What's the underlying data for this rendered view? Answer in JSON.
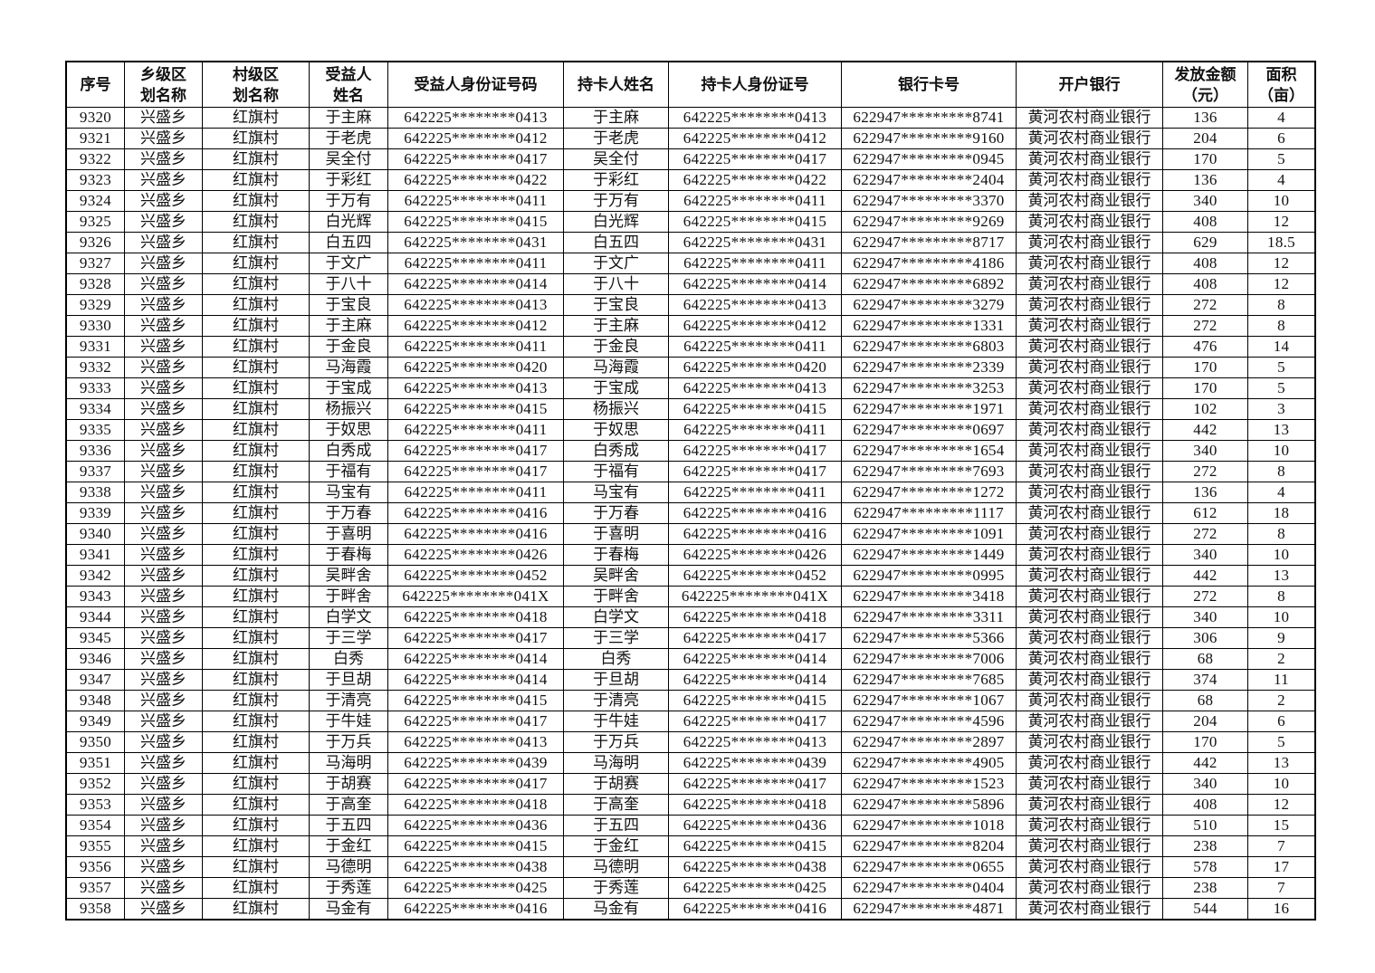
{
  "table": {
    "columns": [
      {
        "key": "index",
        "label": [
          "序号"
        ]
      },
      {
        "key": "township",
        "label": [
          "乡级区",
          "划名称"
        ]
      },
      {
        "key": "village",
        "label": [
          "村级区",
          "划名称"
        ]
      },
      {
        "key": "beneficiary_name",
        "label": [
          "受益人",
          "姓名"
        ]
      },
      {
        "key": "beneficiary_id",
        "label": [
          "受益人身份证号码"
        ]
      },
      {
        "key": "cardholder_name",
        "label": [
          "持卡人姓名"
        ]
      },
      {
        "key": "cardholder_id",
        "label": [
          "持卡人身份证号"
        ]
      },
      {
        "key": "bank_card",
        "label": [
          "银行卡号"
        ]
      },
      {
        "key": "bank_name",
        "label": [
          "开户银行"
        ]
      },
      {
        "key": "amount",
        "label": [
          "发放金额",
          "（元）"
        ]
      },
      {
        "key": "area",
        "label": [
          "面积",
          "（亩）"
        ]
      }
    ],
    "rows": [
      {
        "index": "9320",
        "township": "兴盛乡",
        "village": "红旗村",
        "beneficiary_name": "于主麻",
        "beneficiary_id": "642225********0413",
        "cardholder_name": "于主麻",
        "cardholder_id": "642225********0413",
        "bank_card": "622947*********8741",
        "bank_name": "黄河农村商业银行",
        "amount": "136",
        "area": "4"
      },
      {
        "index": "9321",
        "township": "兴盛乡",
        "village": "红旗村",
        "beneficiary_name": "于老虎",
        "beneficiary_id": "642225********0412",
        "cardholder_name": "于老虎",
        "cardholder_id": "642225********0412",
        "bank_card": "622947*********9160",
        "bank_name": "黄河农村商业银行",
        "amount": "204",
        "area": "6"
      },
      {
        "index": "9322",
        "township": "兴盛乡",
        "village": "红旗村",
        "beneficiary_name": "吴全付",
        "beneficiary_id": "642225********0417",
        "cardholder_name": "吴全付",
        "cardholder_id": "642225********0417",
        "bank_card": "622947*********0945",
        "bank_name": "黄河农村商业银行",
        "amount": "170",
        "area": "5"
      },
      {
        "index": "9323",
        "township": "兴盛乡",
        "village": "红旗村",
        "beneficiary_name": "于彩红",
        "beneficiary_id": "642225********0422",
        "cardholder_name": "于彩红",
        "cardholder_id": "642225********0422",
        "bank_card": "622947*********2404",
        "bank_name": "黄河农村商业银行",
        "amount": "136",
        "area": "4"
      },
      {
        "index": "9324",
        "township": "兴盛乡",
        "village": "红旗村",
        "beneficiary_name": "于万有",
        "beneficiary_id": "642225********0411",
        "cardholder_name": "于万有",
        "cardholder_id": "642225********0411",
        "bank_card": "622947*********3370",
        "bank_name": "黄河农村商业银行",
        "amount": "340",
        "area": "10"
      },
      {
        "index": "9325",
        "township": "兴盛乡",
        "village": "红旗村",
        "beneficiary_name": "白光辉",
        "beneficiary_id": "642225********0415",
        "cardholder_name": "白光辉",
        "cardholder_id": "642225********0415",
        "bank_card": "622947*********9269",
        "bank_name": "黄河农村商业银行",
        "amount": "408",
        "area": "12"
      },
      {
        "index": "9326",
        "township": "兴盛乡",
        "village": "红旗村",
        "beneficiary_name": "白五四",
        "beneficiary_id": "642225********0431",
        "cardholder_name": "白五四",
        "cardholder_id": "642225********0431",
        "bank_card": "622947*********8717",
        "bank_name": "黄河农村商业银行",
        "amount": "629",
        "area": "18.5"
      },
      {
        "index": "9327",
        "township": "兴盛乡",
        "village": "红旗村",
        "beneficiary_name": "于文广",
        "beneficiary_id": "642225********0411",
        "cardholder_name": "于文广",
        "cardholder_id": "642225********0411",
        "bank_card": "622947*********4186",
        "bank_name": "黄河农村商业银行",
        "amount": "408",
        "area": "12"
      },
      {
        "index": "9328",
        "township": "兴盛乡",
        "village": "红旗村",
        "beneficiary_name": "于八十",
        "beneficiary_id": "642225********0414",
        "cardholder_name": "于八十",
        "cardholder_id": "642225********0414",
        "bank_card": "622947*********6892",
        "bank_name": "黄河农村商业银行",
        "amount": "408",
        "area": "12"
      },
      {
        "index": "9329",
        "township": "兴盛乡",
        "village": "红旗村",
        "beneficiary_name": "于宝良",
        "beneficiary_id": "642225********0413",
        "cardholder_name": "于宝良",
        "cardholder_id": "642225********0413",
        "bank_card": "622947*********3279",
        "bank_name": "黄河农村商业银行",
        "amount": "272",
        "area": "8"
      },
      {
        "index": "9330",
        "township": "兴盛乡",
        "village": "红旗村",
        "beneficiary_name": "于主麻",
        "beneficiary_id": "642225********0412",
        "cardholder_name": "于主麻",
        "cardholder_id": "642225********0412",
        "bank_card": "622947*********1331",
        "bank_name": "黄河农村商业银行",
        "amount": "272",
        "area": "8"
      },
      {
        "index": "9331",
        "township": "兴盛乡",
        "village": "红旗村",
        "beneficiary_name": "于金良",
        "beneficiary_id": "642225********0411",
        "cardholder_name": "于金良",
        "cardholder_id": "642225********0411",
        "bank_card": "622947*********6803",
        "bank_name": "黄河农村商业银行",
        "amount": "476",
        "area": "14"
      },
      {
        "index": "9332",
        "township": "兴盛乡",
        "village": "红旗村",
        "beneficiary_name": "马海霞",
        "beneficiary_id": "642225********0420",
        "cardholder_name": "马海霞",
        "cardholder_id": "642225********0420",
        "bank_card": "622947*********2339",
        "bank_name": "黄河农村商业银行",
        "amount": "170",
        "area": "5"
      },
      {
        "index": "9333",
        "township": "兴盛乡",
        "village": "红旗村",
        "beneficiary_name": "于宝成",
        "beneficiary_id": "642225********0413",
        "cardholder_name": "于宝成",
        "cardholder_id": "642225********0413",
        "bank_card": "622947*********3253",
        "bank_name": "黄河农村商业银行",
        "amount": "170",
        "area": "5"
      },
      {
        "index": "9334",
        "township": "兴盛乡",
        "village": "红旗村",
        "beneficiary_name": "杨振兴",
        "beneficiary_id": "642225********0415",
        "cardholder_name": "杨振兴",
        "cardholder_id": "642225********0415",
        "bank_card": "622947*********1971",
        "bank_name": "黄河农村商业银行",
        "amount": "102",
        "area": "3"
      },
      {
        "index": "9335",
        "township": "兴盛乡",
        "village": "红旗村",
        "beneficiary_name": "于奴思",
        "beneficiary_id": "642225********0411",
        "cardholder_name": "于奴思",
        "cardholder_id": "642225********0411",
        "bank_card": "622947*********0697",
        "bank_name": "黄河农村商业银行",
        "amount": "442",
        "area": "13"
      },
      {
        "index": "9336",
        "township": "兴盛乡",
        "village": "红旗村",
        "beneficiary_name": "白秀成",
        "beneficiary_id": "642225********0417",
        "cardholder_name": "白秀成",
        "cardholder_id": "642225********0417",
        "bank_card": "622947*********1654",
        "bank_name": "黄河农村商业银行",
        "amount": "340",
        "area": "10"
      },
      {
        "index": "9337",
        "township": "兴盛乡",
        "village": "红旗村",
        "beneficiary_name": "于福有",
        "beneficiary_id": "642225********0417",
        "cardholder_name": "于福有",
        "cardholder_id": "642225********0417",
        "bank_card": "622947*********7693",
        "bank_name": "黄河农村商业银行",
        "amount": "272",
        "area": "8"
      },
      {
        "index": "9338",
        "township": "兴盛乡",
        "village": "红旗村",
        "beneficiary_name": "马宝有",
        "beneficiary_id": "642225********0411",
        "cardholder_name": "马宝有",
        "cardholder_id": "642225********0411",
        "bank_card": "622947*********1272",
        "bank_name": "黄河农村商业银行",
        "amount": "136",
        "area": "4"
      },
      {
        "index": "9339",
        "township": "兴盛乡",
        "village": "红旗村",
        "beneficiary_name": "于万春",
        "beneficiary_id": "642225********0416",
        "cardholder_name": "于万春",
        "cardholder_id": "642225********0416",
        "bank_card": "622947*********1117",
        "bank_name": "黄河农村商业银行",
        "amount": "612",
        "area": "18"
      },
      {
        "index": "9340",
        "township": "兴盛乡",
        "village": "红旗村",
        "beneficiary_name": "于喜明",
        "beneficiary_id": "642225********0416",
        "cardholder_name": "于喜明",
        "cardholder_id": "642225********0416",
        "bank_card": "622947*********1091",
        "bank_name": "黄河农村商业银行",
        "amount": "272",
        "area": "8"
      },
      {
        "index": "9341",
        "township": "兴盛乡",
        "village": "红旗村",
        "beneficiary_name": "于春梅",
        "beneficiary_id": "642225********0426",
        "cardholder_name": "于春梅",
        "cardholder_id": "642225********0426",
        "bank_card": "622947*********1449",
        "bank_name": "黄河农村商业银行",
        "amount": "340",
        "area": "10"
      },
      {
        "index": "9342",
        "township": "兴盛乡",
        "village": "红旗村",
        "beneficiary_name": "吴畔舍",
        "beneficiary_id": "642225********0452",
        "cardholder_name": "吴畔舍",
        "cardholder_id": "642225********0452",
        "bank_card": "622947*********0995",
        "bank_name": "黄河农村商业银行",
        "amount": "442",
        "area": "13"
      },
      {
        "index": "9343",
        "township": "兴盛乡",
        "village": "红旗村",
        "beneficiary_name": "于畔舍",
        "beneficiary_id": "642225********041X",
        "cardholder_name": "于畔舍",
        "cardholder_id": "642225********041X",
        "bank_card": "622947*********3418",
        "bank_name": "黄河农村商业银行",
        "amount": "272",
        "area": "8"
      },
      {
        "index": "9344",
        "township": "兴盛乡",
        "village": "红旗村",
        "beneficiary_name": "白学文",
        "beneficiary_id": "642225********0418",
        "cardholder_name": "白学文",
        "cardholder_id": "642225********0418",
        "bank_card": "622947*********3311",
        "bank_name": "黄河农村商业银行",
        "amount": "340",
        "area": "10"
      },
      {
        "index": "9345",
        "township": "兴盛乡",
        "village": "红旗村",
        "beneficiary_name": "于三学",
        "beneficiary_id": "642225********0417",
        "cardholder_name": "于三学",
        "cardholder_id": "642225********0417",
        "bank_card": "622947*********5366",
        "bank_name": "黄河农村商业银行",
        "amount": "306",
        "area": "9"
      },
      {
        "index": "9346",
        "township": "兴盛乡",
        "village": "红旗村",
        "beneficiary_name": "白秀",
        "beneficiary_id": "642225********0414",
        "cardholder_name": "白秀",
        "cardholder_id": "642225********0414",
        "bank_card": "622947*********7006",
        "bank_name": "黄河农村商业银行",
        "amount": "68",
        "area": "2"
      },
      {
        "index": "9347",
        "township": "兴盛乡",
        "village": "红旗村",
        "beneficiary_name": "于旦胡",
        "beneficiary_id": "642225********0414",
        "cardholder_name": "于旦胡",
        "cardholder_id": "642225********0414",
        "bank_card": "622947*********7685",
        "bank_name": "黄河农村商业银行",
        "amount": "374",
        "area": "11"
      },
      {
        "index": "9348",
        "township": "兴盛乡",
        "village": "红旗村",
        "beneficiary_name": "于清亮",
        "beneficiary_id": "642225********0415",
        "cardholder_name": "于清亮",
        "cardholder_id": "642225********0415",
        "bank_card": "622947*********1067",
        "bank_name": "黄河农村商业银行",
        "amount": "68",
        "area": "2"
      },
      {
        "index": "9349",
        "township": "兴盛乡",
        "village": "红旗村",
        "beneficiary_name": "于牛娃",
        "beneficiary_id": "642225********0417",
        "cardholder_name": "于牛娃",
        "cardholder_id": "642225********0417",
        "bank_card": "622947*********4596",
        "bank_name": "黄河农村商业银行",
        "amount": "204",
        "area": "6"
      },
      {
        "index": "9350",
        "township": "兴盛乡",
        "village": "红旗村",
        "beneficiary_name": "于万兵",
        "beneficiary_id": "642225********0413",
        "cardholder_name": "于万兵",
        "cardholder_id": "642225********0413",
        "bank_card": "622947*********2897",
        "bank_name": "黄河农村商业银行",
        "amount": "170",
        "area": "5"
      },
      {
        "index": "9351",
        "township": "兴盛乡",
        "village": "红旗村",
        "beneficiary_name": "马海明",
        "beneficiary_id": "642225********0439",
        "cardholder_name": "马海明",
        "cardholder_id": "642225********0439",
        "bank_card": "622947*********4905",
        "bank_name": "黄河农村商业银行",
        "amount": "442",
        "area": "13"
      },
      {
        "index": "9352",
        "township": "兴盛乡",
        "village": "红旗村",
        "beneficiary_name": "于胡赛",
        "beneficiary_id": "642225********0417",
        "cardholder_name": "于胡赛",
        "cardholder_id": "642225********0417",
        "bank_card": "622947*********1523",
        "bank_name": "黄河农村商业银行",
        "amount": "340",
        "area": "10"
      },
      {
        "index": "9353",
        "township": "兴盛乡",
        "village": "红旗村",
        "beneficiary_name": "于高奎",
        "beneficiary_id": "642225********0418",
        "cardholder_name": "于高奎",
        "cardholder_id": "642225********0418",
        "bank_card": "622947*********5896",
        "bank_name": "黄河农村商业银行",
        "amount": "408",
        "area": "12"
      },
      {
        "index": "9354",
        "township": "兴盛乡",
        "village": "红旗村",
        "beneficiary_name": "于五四",
        "beneficiary_id": "642225********0436",
        "cardholder_name": "于五四",
        "cardholder_id": "642225********0436",
        "bank_card": "622947*********1018",
        "bank_name": "黄河农村商业银行",
        "amount": "510",
        "area": "15"
      },
      {
        "index": "9355",
        "township": "兴盛乡",
        "village": "红旗村",
        "beneficiary_name": "于金红",
        "beneficiary_id": "642225********0415",
        "cardholder_name": "于金红",
        "cardholder_id": "642225********0415",
        "bank_card": "622947*********8204",
        "bank_name": "黄河农村商业银行",
        "amount": "238",
        "area": "7"
      },
      {
        "index": "9356",
        "township": "兴盛乡",
        "village": "红旗村",
        "beneficiary_name": "马德明",
        "beneficiary_id": "642225********0438",
        "cardholder_name": "马德明",
        "cardholder_id": "642225********0438",
        "bank_card": "622947*********0655",
        "bank_name": "黄河农村商业银行",
        "amount": "578",
        "area": "17"
      },
      {
        "index": "9357",
        "township": "兴盛乡",
        "village": "红旗村",
        "beneficiary_name": "于秀莲",
        "beneficiary_id": "642225********0425",
        "cardholder_name": "于秀莲",
        "cardholder_id": "642225********0425",
        "bank_card": "622947*********0404",
        "bank_name": "黄河农村商业银行",
        "amount": "238",
        "area": "7"
      },
      {
        "index": "9358",
        "township": "兴盛乡",
        "village": "红旗村",
        "beneficiary_name": "马金有",
        "beneficiary_id": "642225********0416",
        "cardholder_name": "马金有",
        "cardholder_id": "642225********0416",
        "bank_card": "622947*********4871",
        "bank_name": "黄河农村商业银行",
        "amount": "544",
        "area": "16"
      }
    ]
  }
}
